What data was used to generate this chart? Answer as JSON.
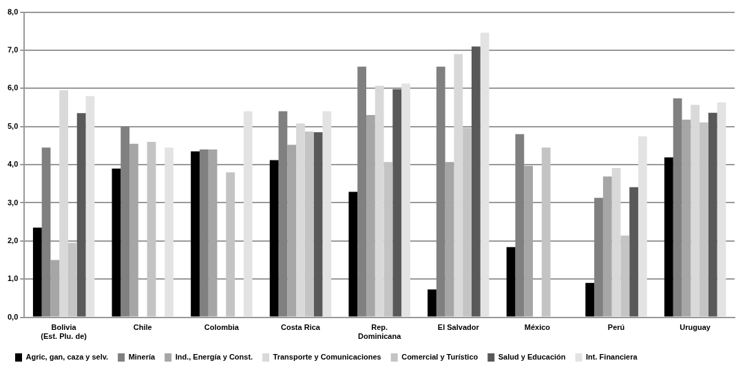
{
  "chart_data": {
    "type": "bar",
    "categories": [
      "Bolivia\n(Est. Plu. de)",
      "Chile",
      "Colombia",
      "Costa Rica",
      "Rep.\nDominicana",
      "El Salvador",
      "México",
      "Perú",
      "Uruguay"
    ],
    "series": [
      {
        "name": "Agric, gan, caza y selv.",
        "color": "#000000",
        "values": [
          2.35,
          3.9,
          4.35,
          4.12,
          3.29,
          0.73,
          1.84,
          0.9,
          4.19
        ]
      },
      {
        "name": "Minería",
        "color": "#808080",
        "values": [
          4.45,
          5.0,
          4.4,
          5.4,
          6.57,
          6.57,
          4.8,
          3.13,
          5.74
        ]
      },
      {
        "name": "Ind., Energía y Const.",
        "color": "#a6a6a6",
        "values": [
          1.5,
          4.55,
          4.4,
          4.52,
          5.3,
          4.07,
          3.97,
          3.69,
          5.18
        ]
      },
      {
        "name": "Transporte y Comunicaciones",
        "color": "#d9d9d9",
        "values": [
          5.95,
          null,
          null,
          5.08,
          6.07,
          6.9,
          null,
          3.91,
          5.57
        ]
      },
      {
        "name": "Comercial y Turístico",
        "color": "#c4c4c4",
        "values": [
          1.95,
          4.6,
          3.8,
          4.87,
          4.07,
          4.97,
          4.45,
          2.14,
          5.11
        ]
      },
      {
        "name": "Salud y Educación",
        "color": "#595959",
        "values": [
          5.35,
          null,
          null,
          4.85,
          5.98,
          7.1,
          null,
          3.41,
          5.36
        ]
      },
      {
        "name": "Int. Financiera",
        "color": "#e3e3e3",
        "values": [
          5.8,
          4.45,
          5.4,
          5.4,
          6.13,
          7.46,
          null,
          4.74,
          5.63
        ]
      }
    ],
    "ylim": [
      0,
      8
    ],
    "yticks": [
      {
        "value": 0,
        "label": "0,0"
      },
      {
        "value": 1,
        "label": "1,0"
      },
      {
        "value": 2,
        "label": "2,0"
      },
      {
        "value": 3,
        "label": "3,0"
      },
      {
        "value": 4,
        "label": "4,0"
      },
      {
        "value": 5,
        "label": "5,0"
      },
      {
        "value": 6,
        "label": "6,0"
      },
      {
        "value": 7,
        "label": "7,0"
      },
      {
        "value": 8,
        "label": "8,0"
      }
    ],
    "grid": "y",
    "legend": "bottom"
  }
}
